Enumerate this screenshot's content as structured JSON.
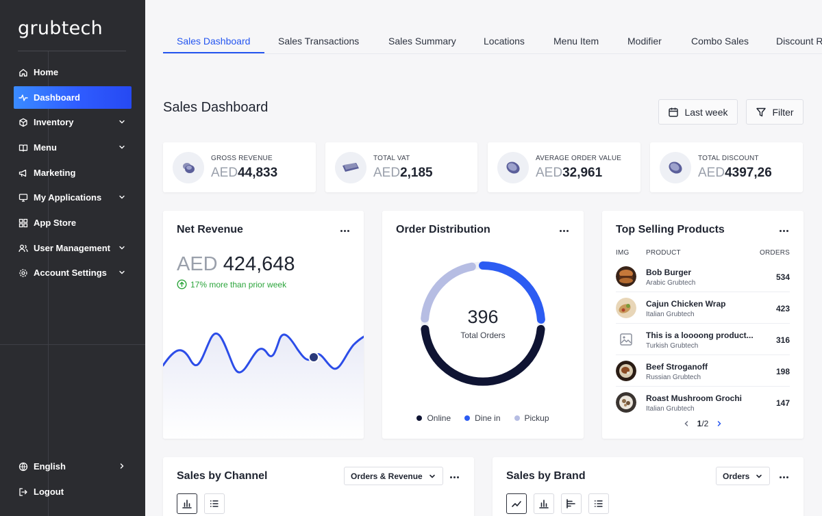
{
  "app": {
    "logo": "grubtech"
  },
  "sidebar": {
    "items": [
      {
        "label": "Home",
        "icon": "home-icon"
      },
      {
        "label": "Dashboard",
        "icon": "activity-icon",
        "active": true
      },
      {
        "label": "Inventory",
        "icon": "box-icon",
        "expandable": true
      },
      {
        "label": "Menu",
        "icon": "book-icon",
        "expandable": true
      },
      {
        "label": "Marketing",
        "icon": "megaphone-icon"
      },
      {
        "label": "My Applications",
        "icon": "monitor-icon",
        "expandable": true
      },
      {
        "label": "App Store",
        "icon": "grid-icon"
      },
      {
        "label": "User Management",
        "icon": "users-icon",
        "expandable": true
      },
      {
        "label": "Account Settings",
        "icon": "gear-icon",
        "expandable": true
      }
    ],
    "language": "English",
    "logout": "Logout"
  },
  "tabs": [
    "Sales Dashboard",
    "Sales Transactions",
    "Sales Summary",
    "Locations",
    "Menu Item",
    "Modifier",
    "Combo Sales",
    "Discount R"
  ],
  "header": {
    "title": "Sales Dashboard",
    "date_button": "Last week",
    "filter_button": "Filter"
  },
  "kpis": [
    {
      "label": "GROSS REVENUE",
      "currency": "AED",
      "value": "44,833"
    },
    {
      "label": "TOTAL VAT",
      "currency": "AED",
      "value": "2,185"
    },
    {
      "label": "AVERAGE ORDER VALUE",
      "currency": "AED",
      "value": "32,961"
    },
    {
      "label": "TOTAL DISCOUNT",
      "currency": "AED",
      "value": "4397,26"
    }
  ],
  "net_revenue": {
    "title": "Net Revenue",
    "currency": "AED",
    "value": "424,648",
    "change_note": "17% more than prior week"
  },
  "order_distribution": {
    "title": "Order Distribution",
    "total": "396",
    "total_label": "Total Orders",
    "legend": [
      {
        "label": "Online",
        "color": "#0f1433"
      },
      {
        "label": "Dine in",
        "color": "#2c5cf2"
      },
      {
        "label": "Pickup",
        "color": "#b6bde3"
      }
    ]
  },
  "top_products": {
    "title": "Top Selling Products",
    "columns": [
      "IMG",
      "PRODUCT",
      "ORDERS"
    ],
    "rows": [
      {
        "name": "Bob Burger",
        "brand": "Arabic Grubtech",
        "orders": "534"
      },
      {
        "name": "Cajun Chicken Wrap",
        "brand": "Italian Grubtech",
        "orders": "423"
      },
      {
        "name": "This is a loooong product...",
        "brand": "Turkish Grubtech",
        "orders": "316"
      },
      {
        "name": "Beef Stroganoff",
        "brand": "Russian Grubtech",
        "orders": "198"
      },
      {
        "name": "Roast Mushroom Grochi",
        "brand": "Italian Grubtech",
        "orders": "147"
      }
    ],
    "page_current": "1",
    "page_total": "/2"
  },
  "sales_by_channel": {
    "title": "Sales by Channel",
    "dropdown": "Orders & Revenue"
  },
  "sales_by_brand": {
    "title": "Sales by Brand",
    "dropdown": "Orders"
  }
}
